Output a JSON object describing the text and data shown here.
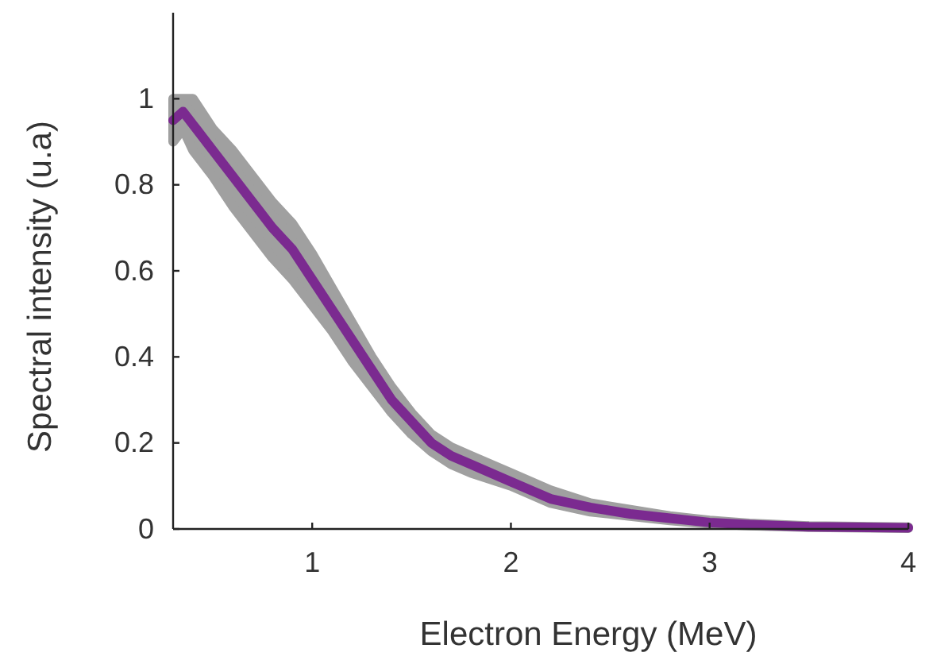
{
  "chart_data": {
    "type": "line",
    "xlabel": "Electron Energy (MeV)",
    "ylabel": "Spectral intensity (u.a)",
    "xlim": [
      0.3,
      4
    ],
    "xticks": [
      1,
      2,
      3,
      4
    ],
    "ylim": [
      0,
      1.2
    ],
    "yticks": [
      0,
      0.2,
      0.4,
      0.6,
      0.8,
      1
    ],
    "grid": false,
    "series": [
      {
        "color": "#7b2a90",
        "x": [
          0.3,
          0.35,
          0.4,
          0.5,
          0.6,
          0.7,
          0.8,
          0.9,
          1.0,
          1.1,
          1.2,
          1.3,
          1.4,
          1.5,
          1.6,
          1.7,
          1.8,
          2.0,
          2.2,
          2.4,
          2.6,
          2.8,
          3.0,
          3.2,
          3.5,
          4.0
        ],
        "values": [
          0.95,
          0.97,
          0.94,
          0.88,
          0.82,
          0.76,
          0.7,
          0.65,
          0.58,
          0.51,
          0.44,
          0.37,
          0.3,
          0.25,
          0.2,
          0.17,
          0.15,
          0.11,
          0.07,
          0.05,
          0.035,
          0.025,
          0.015,
          0.01,
          0.005,
          0.003
        ],
        "lower": [
          0.9,
          0.93,
          0.88,
          0.82,
          0.75,
          0.69,
          0.63,
          0.58,
          0.52,
          0.46,
          0.39,
          0.33,
          0.27,
          0.22,
          0.18,
          0.15,
          0.13,
          0.1,
          0.06,
          0.04,
          0.03,
          0.02,
          0.012,
          0.008,
          0.004,
          0.002
        ],
        "upper": [
          1.0,
          1.0,
          1.0,
          0.93,
          0.88,
          0.82,
          0.76,
          0.71,
          0.64,
          0.56,
          0.48,
          0.4,
          0.33,
          0.27,
          0.22,
          0.19,
          0.17,
          0.13,
          0.09,
          0.06,
          0.045,
          0.03,
          0.02,
          0.013,
          0.007,
          0.004
        ]
      }
    ]
  }
}
